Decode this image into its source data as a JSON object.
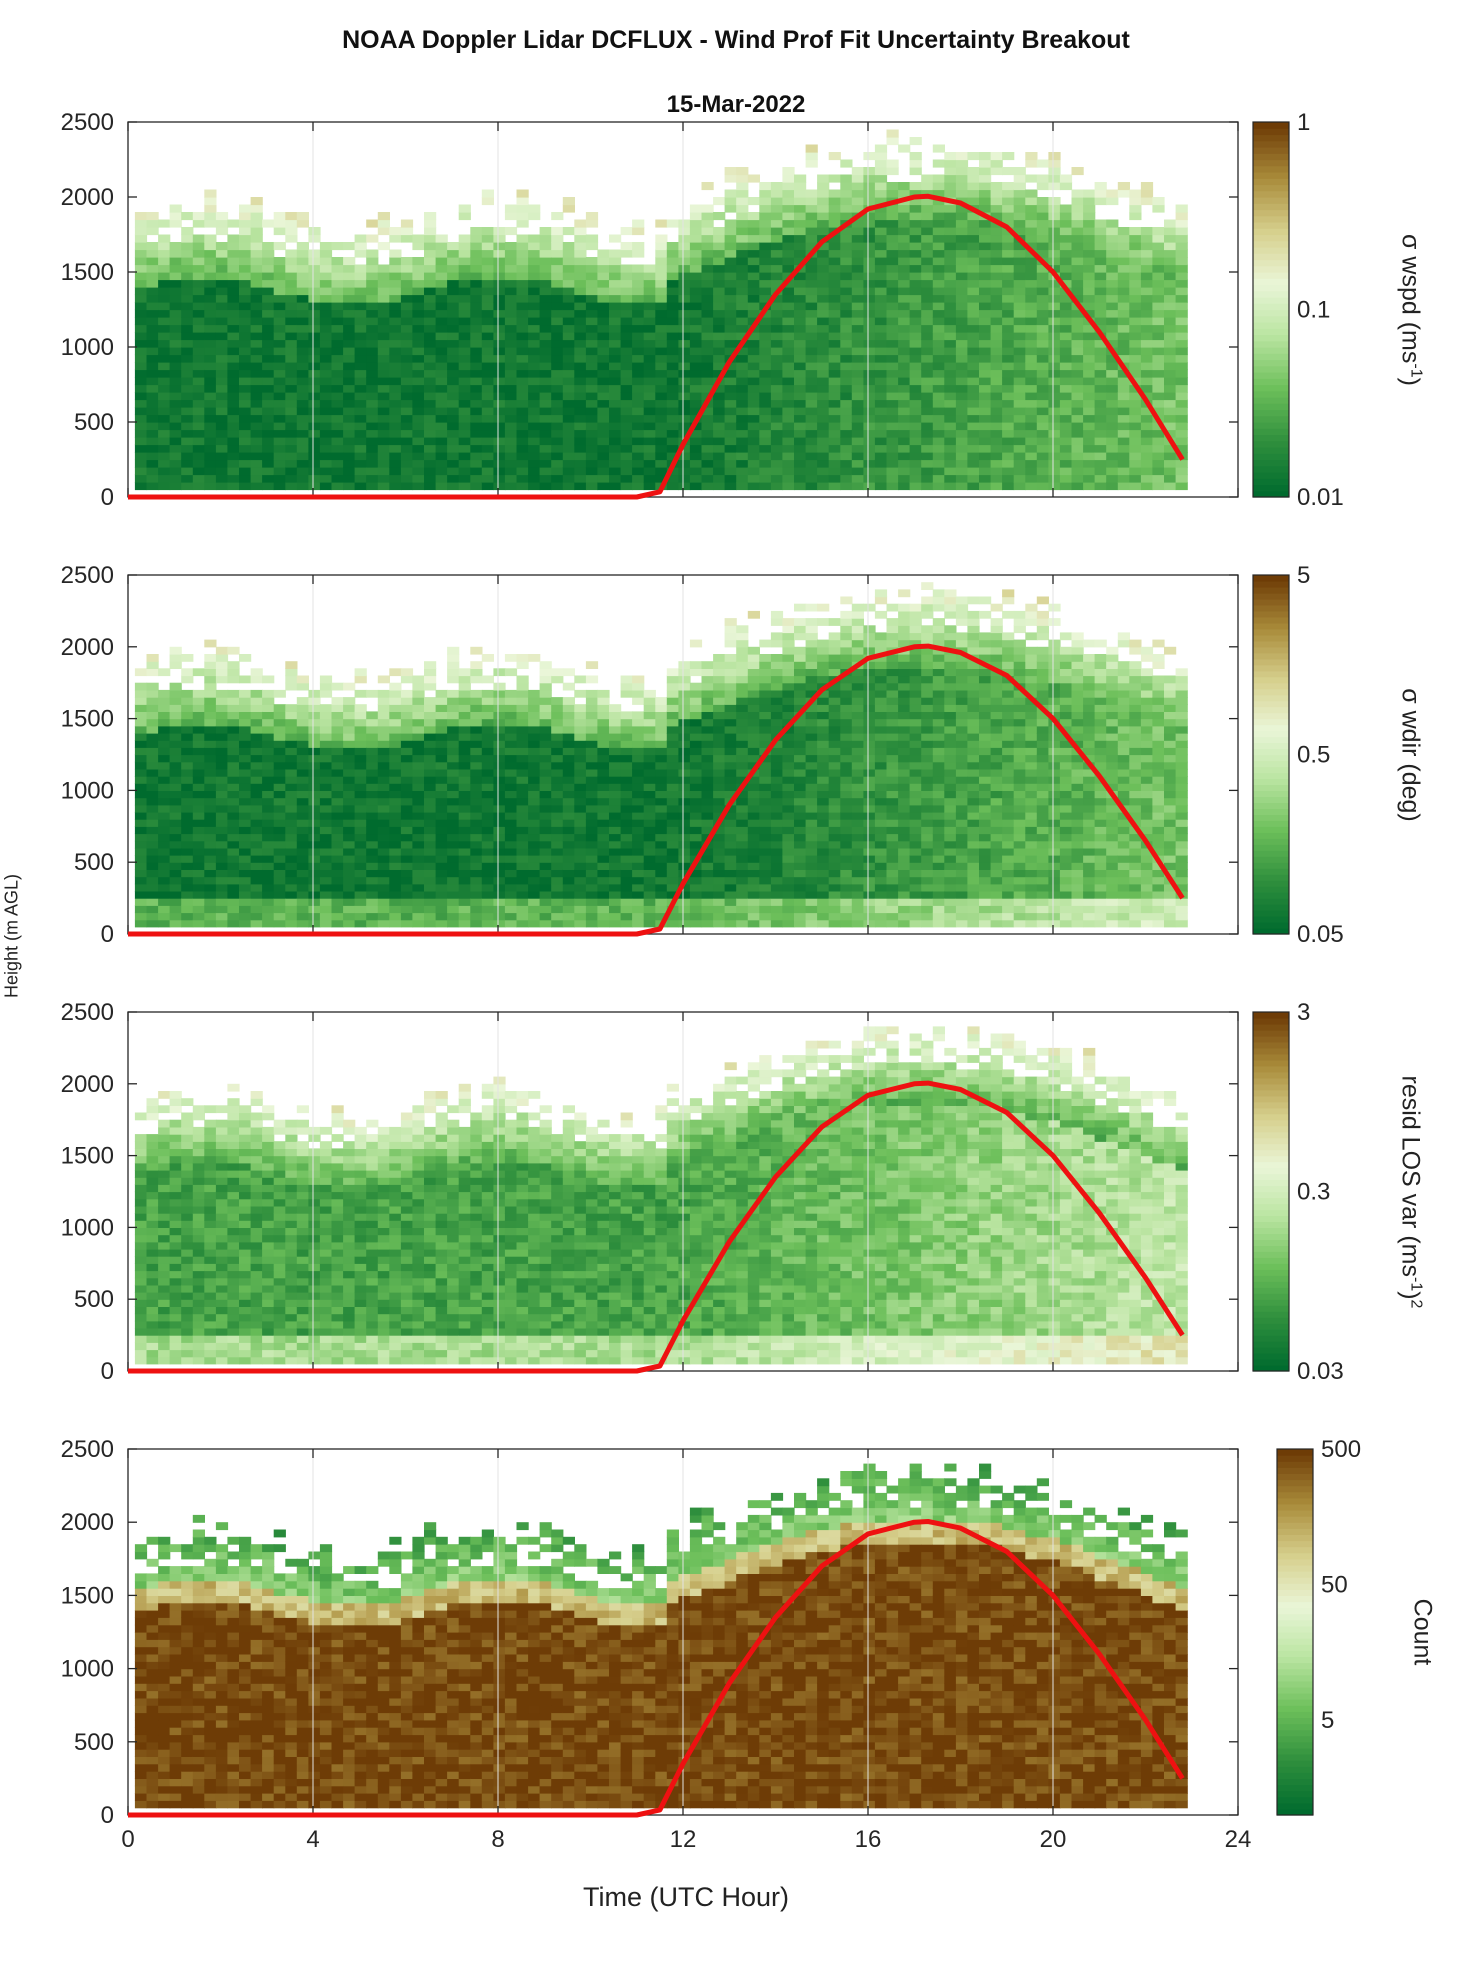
{
  "figure": {
    "title": "NOAA Doppler Lidar DCFLUX - Wind Prof Fit Uncertainty Breakout",
    "subtitle": "15-Mar-2022",
    "shared_ylabel": "Height (m AGL)",
    "shared_xlabel": "Time (UTC Hour)"
  },
  "colors": {
    "line": "#ee1111",
    "axis": "#262626",
    "grid": "#e3e3e3",
    "colormap": [
      "#006b2e",
      "#2f8f3d",
      "#6cbf5a",
      "#b9e4a0",
      "#eaf6d8",
      "#d6cf8c",
      "#a98b3a",
      "#6e3c06"
    ]
  },
  "chart_data": [
    {
      "type": "heatmap",
      "panel": "wspd",
      "x_range": [
        0,
        24
      ],
      "x_ticks": [
        0,
        4,
        8,
        12,
        16,
        20,
        24
      ],
      "ylim": [
        0,
        2500
      ],
      "y_ticks": [
        0,
        500,
        1000,
        1500,
        2000,
        2500
      ],
      "colorbar": {
        "label_prefix": "σ wspd (ms",
        "label_sup": "-1",
        "label_suffix": ")",
        "scale": "log",
        "range": [
          0.01,
          1
        ],
        "ticks": [
          0.01,
          0.1,
          1
        ],
        "tick_labels": [
          "0.01",
          "0.1",
          "1"
        ]
      },
      "colormap": "green-white-brown",
      "grid": true,
      "overlay_line": {
        "description": "red curve",
        "x": [
          0,
          11,
          11.5,
          12,
          13,
          14,
          15,
          16,
          17,
          17.3,
          18,
          19,
          20,
          21,
          22,
          22.8
        ],
        "y": [
          0,
          0,
          35,
          350,
          900,
          1350,
          1700,
          1920,
          2000,
          2005,
          1960,
          1800,
          1500,
          1100,
          650,
          250
        ]
      }
    },
    {
      "type": "heatmap",
      "panel": "wdir",
      "x_range": [
        0,
        24
      ],
      "x_ticks": [
        0,
        4,
        8,
        12,
        16,
        20,
        24
      ],
      "ylim": [
        0,
        2500
      ],
      "y_ticks": [
        0,
        500,
        1000,
        1500,
        2000,
        2500
      ],
      "colorbar": {
        "label_prefix": "σ wdir (deg)",
        "label_sup": "",
        "label_suffix": "",
        "scale": "log",
        "range": [
          0.05,
          5
        ],
        "ticks": [
          0.05,
          0.5,
          5
        ],
        "tick_labels": [
          "0.05",
          "0.5",
          "5"
        ]
      },
      "colormap": "green-white-brown",
      "grid": true,
      "overlay_line": {
        "description": "red curve",
        "x": [
          0,
          11,
          11.5,
          12,
          13,
          14,
          15,
          16,
          17,
          17.3,
          18,
          19,
          20,
          21,
          22,
          22.8
        ],
        "y": [
          0,
          0,
          35,
          350,
          900,
          1350,
          1700,
          1920,
          2000,
          2005,
          1960,
          1800,
          1500,
          1100,
          650,
          250
        ]
      }
    },
    {
      "type": "heatmap",
      "panel": "resid",
      "x_range": [
        0,
        24
      ],
      "x_ticks": [
        0,
        4,
        8,
        12,
        16,
        20,
        24
      ],
      "ylim": [
        0,
        2500
      ],
      "y_ticks": [
        0,
        500,
        1000,
        1500,
        2000,
        2500
      ],
      "colorbar": {
        "label_prefix": "resid LOS var (ms",
        "label_sup": "-1",
        "label_suffix": ")",
        "label_sup2": "2",
        "scale": "log",
        "range": [
          0.03,
          3
        ],
        "ticks": [
          0.03,
          0.3,
          3
        ],
        "tick_labels": [
          "0.03",
          "0.3",
          "3"
        ]
      },
      "colormap": "green-white-brown",
      "grid": true,
      "overlay_line": {
        "description": "red curve",
        "x": [
          0,
          11,
          11.5,
          12,
          13,
          14,
          15,
          16,
          17,
          17.3,
          18,
          19,
          20,
          21,
          22,
          22.8
        ],
        "y": [
          0,
          0,
          35,
          350,
          900,
          1350,
          1700,
          1920,
          2000,
          2005,
          1960,
          1800,
          1500,
          1100,
          650,
          250
        ]
      }
    },
    {
      "type": "heatmap",
      "panel": "count",
      "x_range": [
        0,
        24
      ],
      "x_ticks": [
        0,
        4,
        8,
        12,
        16,
        20,
        24
      ],
      "x_tick_labels": [
        "0",
        "4",
        "8",
        "12",
        "16",
        "20",
        "24"
      ],
      "ylim": [
        0,
        2500
      ],
      "y_ticks": [
        0,
        500,
        1000,
        1500,
        2000,
        2500
      ],
      "colorbar": {
        "label_prefix": "Count",
        "label_sup": "",
        "label_suffix": "",
        "scale": "log",
        "range": [
          1,
          500
        ],
        "ticks": [
          5,
          50,
          500
        ],
        "tick_labels": [
          "5",
          "50",
          "500"
        ]
      },
      "colormap": "green-white-brown",
      "grid": true,
      "overlay_line": {
        "description": "red curve",
        "x": [
          0,
          11,
          11.5,
          12,
          13,
          14,
          15,
          16,
          17,
          17.3,
          18,
          19,
          20,
          21,
          22,
          22.8
        ],
        "y": [
          0,
          0,
          35,
          350,
          900,
          1350,
          1700,
          1920,
          2000,
          2005,
          1960,
          1800,
          1500,
          1100,
          650,
          250
        ]
      }
    }
  ]
}
